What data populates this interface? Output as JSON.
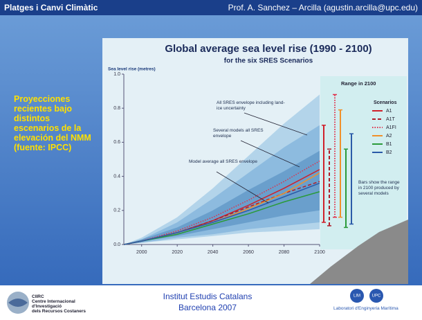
{
  "header": {
    "title": "Platges i Canvi Climàtic",
    "author": "Prof.  A. Sanchez – Arcilla (agustin.arcilla@upc.edu)"
  },
  "sidebar": {
    "text": "Proyecciones recientes bajo distintos escenarios de la elevación del NMM (fuente: IPCC)"
  },
  "footer": {
    "left_logo": [
      "CIIRC",
      "Centre Internacional",
      "d'Investigació",
      "dels Recursos Costaners"
    ],
    "center": [
      "Institut Estudis Catalans",
      "Barcelona  2007"
    ],
    "right_logo": [
      "LIM",
      "UPC",
      "Laboratori d'Enginyeria Marítima"
    ]
  },
  "chart_data": {
    "type": "line",
    "title": "Global average sea level rise (1990 - 2100)",
    "subtitle": "for the six SRES Scenarios",
    "y_label": "Sea level rise (metres)",
    "x": [
      1990,
      2000,
      2020,
      2040,
      2060,
      2080,
      2100
    ],
    "xlim": [
      1990,
      2100
    ],
    "xticks": [
      2000,
      2020,
      2040,
      2060,
      2080,
      2100
    ],
    "ylim": [
      0,
      1
    ],
    "yticks": [
      {
        "value": 0,
        "label": "0.0"
      },
      0.2,
      0.4,
      0.6,
      0.8,
      {
        "value": 1,
        "label": "1.0"
      }
    ],
    "bands": [
      {
        "name": "All SRES envelope including land-ice uncertainty",
        "color": "#b3d4ea",
        "lower": [
          0,
          0.01,
          0.03,
          0.05,
          0.07,
          0.08,
          0.09
        ],
        "upper": [
          0,
          0.04,
          0.16,
          0.33,
          0.52,
          0.71,
          0.88
        ]
      },
      {
        "name": "Several models all SRES envelope",
        "color": "#8dbbdf",
        "lower": [
          0,
          0.01,
          0.04,
          0.06,
          0.09,
          0.11,
          0.13
        ],
        "upper": [
          0,
          0.03,
          0.13,
          0.27,
          0.42,
          0.57,
          0.7
        ]
      },
      {
        "name": "Model average all SRES envelope",
        "color": "#6a9fcc",
        "lower": [
          0,
          0.02,
          0.05,
          0.09,
          0.13,
          0.17,
          0.2
        ],
        "upper": [
          0,
          0.03,
          0.1,
          0.2,
          0.32,
          0.43,
          0.55
        ]
      }
    ],
    "series": [
      {
        "name": "A1",
        "color": "#d0202a",
        "dash": "solid",
        "values": [
          0,
          0.02,
          0.07,
          0.14,
          0.23,
          0.33,
          0.44
        ],
        "range": [
          0.13,
          0.7
        ]
      },
      {
        "name": "A1T",
        "color": "#b01c28",
        "dash": "dashed",
        "values": [
          0,
          0.02,
          0.07,
          0.14,
          0.22,
          0.3,
          0.37
        ],
        "range": [
          0.11,
          0.56
        ]
      },
      {
        "name": "A1FI",
        "color": "#e0304a",
        "dash": "dotted",
        "values": [
          0,
          0.02,
          0.08,
          0.16,
          0.26,
          0.37,
          0.49
        ],
        "range": [
          0.16,
          0.88
        ]
      },
      {
        "name": "A2",
        "color": "#f0902a",
        "dash": "solid",
        "values": [
          0,
          0.02,
          0.07,
          0.13,
          0.21,
          0.3,
          0.42
        ],
        "range": [
          0.16,
          0.79
        ]
      },
      {
        "name": "B1",
        "color": "#2a9a3a",
        "dash": "solid",
        "values": [
          0,
          0.02,
          0.06,
          0.12,
          0.18,
          0.25,
          0.31
        ],
        "range": [
          0.1,
          0.56
        ]
      },
      {
        "name": "B2",
        "color": "#2a5aa8",
        "dash": "solid",
        "values": [
          0,
          0.02,
          0.07,
          0.13,
          0.2,
          0.28,
          0.36
        ],
        "range": [
          0.12,
          0.65
        ]
      }
    ],
    "inset_title": "Range in 2100",
    "legend_title": "Scenarios",
    "inset_note": "Bars show the range in 2100 produced by several models"
  }
}
